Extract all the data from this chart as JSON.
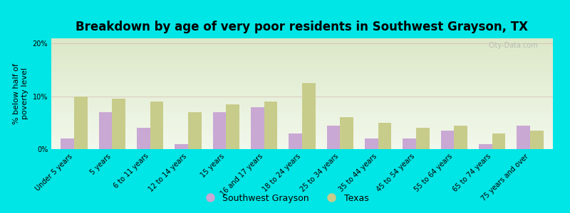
{
  "title": "Breakdown by age of very poor residents in Southwest Grayson, TX",
  "ylabel": "% below half of\npoverty level",
  "categories": [
    "Under 5 years",
    "5 years",
    "6 to 11 years",
    "12 to 14 years",
    "15 years",
    "16 and 17 years",
    "18 to 24 years",
    "25 to 34 years",
    "35 to 44 years",
    "45 to 54 years",
    "55 to 64 years",
    "65 to 74 years",
    "75 years and over"
  ],
  "sw_values": [
    2.0,
    7.0,
    4.0,
    1.0,
    7.0,
    8.0,
    3.0,
    4.5,
    2.0,
    2.0,
    3.5,
    1.0,
    4.5
  ],
  "tx_values": [
    10.0,
    9.5,
    9.0,
    7.0,
    8.5,
    9.0,
    12.5,
    6.0,
    5.0,
    4.0,
    4.5,
    3.0,
    3.5
  ],
  "sw_color": "#c9a8d4",
  "tx_color": "#c8cc8a",
  "background_outer": "#00e5e5",
  "background_plot_top": "#dce8c8",
  "background_plot_bottom": "#f2f8ec",
  "ylim": [
    0,
    21
  ],
  "yticks": [
    0,
    10,
    20
  ],
  "ytick_labels": [
    "0%",
    "10%",
    "20%"
  ],
  "bar_width": 0.35,
  "title_fontsize": 12,
  "ylabel_fontsize": 8,
  "tick_fontsize": 7,
  "legend_fontsize": 9,
  "watermark": "City-Data.com"
}
